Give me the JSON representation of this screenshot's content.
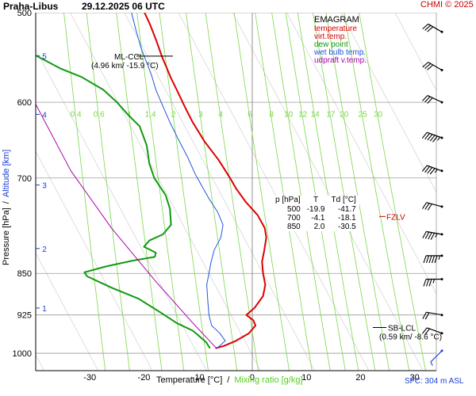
{
  "header": {
    "station": "Praha-Libus",
    "datetime": "29.12.2025 06 UTC",
    "copyright": "CHMI © 2025"
  },
  "legend": {
    "title": "EMAGRAM",
    "items": [
      {
        "label": "temperature",
        "color": "#dd0000"
      },
      {
        "label": "virt.temp.",
        "color": "#dd0000"
      },
      {
        "label": "dew point",
        "color": "#119911"
      },
      {
        "label": "wet bulb temp.",
        "color": "#2255dd"
      },
      {
        "label": "udpraft v.temp.",
        "color": "#aa00aa"
      }
    ]
  },
  "table": {
    "headers": [
      "p [hPa]",
      "T",
      "Td [°C]"
    ],
    "rows": [
      [
        "500",
        "-19.9",
        "-41.7"
      ],
      [
        "700",
        "-4.1",
        "-18.1"
      ],
      [
        "850",
        "2.0",
        "-30.5"
      ]
    ]
  },
  "footer": {
    "sfc": "SFC: 304 m ASL"
  },
  "chart_data": {
    "type": "line",
    "xlabel": "Temperature [°C]",
    "xlabel_sep": "/",
    "xlabel2": "Mixing ratio [g/kg]",
    "ylabel": "Pressure [hPa]",
    "ylabel_sep": "/",
    "ylabel2": "Altitude [km]",
    "xlim": [
      -40,
      34
    ],
    "ylim": [
      1036,
      500
    ],
    "y_scale": "log",
    "x_ticks": [
      -30,
      -20,
      -10,
      0,
      10,
      20,
      30
    ],
    "x_tick_labels": [
      "-30",
      "-20",
      "-10",
      "0",
      "10",
      "20",
      "30"
    ],
    "y_ticks": [
      500,
      600,
      700,
      850,
      925,
      1000
    ],
    "y_tick_labels": [
      "500",
      "600",
      "700",
      "850",
      "925",
      "1000"
    ],
    "altitude_ticks": [
      {
        "p": 615,
        "label": "4"
      },
      {
        "p": 710,
        "label": "3"
      },
      {
        "p": 808,
        "label": "2"
      },
      {
        "p": 912,
        "label": "1"
      },
      {
        "p": 546,
        "label": "5"
      }
    ],
    "mixing_ratio": {
      "values": [
        0.4,
        0.6,
        1,
        1.4,
        2,
        3,
        4,
        6,
        8,
        10,
        12,
        14,
        17,
        20,
        25,
        30
      ],
      "labels": [
        "0.4",
        "0.6",
        "1",
        "1.4",
        "2",
        "3",
        "4",
        "6",
        "8",
        "10",
        "12",
        "14",
        "17",
        "20",
        "25",
        "30"
      ],
      "label_pressure": 620
    },
    "series": [
      {
        "name": "temperature",
        "color": "#dd0000",
        "points": [
          [
            -6.8,
            990
          ],
          [
            -5.2,
            985
          ],
          [
            -3.0,
            975
          ],
          [
            -0.6,
            960
          ],
          [
            0.6,
            945
          ],
          [
            0.2,
            935
          ],
          [
            -1.1,
            925
          ],
          [
            0.4,
            912
          ],
          [
            2.0,
            890
          ],
          [
            2.4,
            870
          ],
          [
            2.0,
            850
          ],
          [
            1.8,
            830
          ],
          [
            2.2,
            812
          ],
          [
            2.6,
            790
          ],
          [
            2.3,
            775
          ],
          [
            1.0,
            755
          ],
          [
            -1.2,
            735
          ],
          [
            -3.0,
            715
          ],
          [
            -4.1,
            700
          ],
          [
            -6.2,
            675
          ],
          [
            -8.8,
            650
          ],
          [
            -11.0,
            625
          ],
          [
            -12.5,
            605
          ],
          [
            -13.8,
            587
          ],
          [
            -15.1,
            570
          ],
          [
            -15.9,
            558
          ],
          [
            -16.6,
            548
          ],
          [
            -17.8,
            528
          ],
          [
            -18.9,
            512
          ],
          [
            -19.9,
            500
          ]
        ]
      },
      {
        "name": "dew point",
        "color": "#119911",
        "points": [
          [
            -7.8,
            990
          ],
          [
            -8.5,
            978
          ],
          [
            -10.2,
            962
          ],
          [
            -11.0,
            955
          ],
          [
            -14.0,
            940
          ],
          [
            -17.0,
            920
          ],
          [
            -21.0,
            895
          ],
          [
            -26.0,
            875
          ],
          [
            -30.5,
            855
          ],
          [
            -31.0,
            848
          ],
          [
            -27.0,
            838
          ],
          [
            -22.0,
            828
          ],
          [
            -18.0,
            822
          ],
          [
            -17.8,
            815
          ],
          [
            -20.0,
            805
          ],
          [
            -19.0,
            795
          ],
          [
            -16.5,
            785
          ],
          [
            -15.0,
            770
          ],
          [
            -15.2,
            745
          ],
          [
            -16.0,
            725
          ],
          [
            -18.1,
            700
          ],
          [
            -19.0,
            680
          ],
          [
            -19.5,
            655
          ],
          [
            -20.8,
            630
          ],
          [
            -23.0,
            615
          ],
          [
            -25.0,
            600
          ],
          [
            -27.5,
            585
          ],
          [
            -31.5,
            570
          ],
          [
            -35.5,
            560
          ],
          [
            -39.5,
            547
          ],
          [
            -41.7,
            540
          ]
        ]
      },
      {
        "name": "wet bulb temp.",
        "color": "#2255dd",
        "points": [
          [
            -6.5,
            990
          ],
          [
            -5.0,
            975
          ],
          [
            -6.0,
            960
          ],
          [
            -7.5,
            945
          ],
          [
            -8.0,
            925
          ],
          [
            -8.2,
            900
          ],
          [
            -8.4,
            870
          ],
          [
            -8.0,
            850
          ],
          [
            -7.6,
            830
          ],
          [
            -7.0,
            810
          ],
          [
            -5.8,
            790
          ],
          [
            -5.4,
            770
          ],
          [
            -6.4,
            750
          ],
          [
            -8.0,
            730
          ],
          [
            -9.4,
            710
          ],
          [
            -10.5,
            695
          ],
          [
            -12.0,
            670
          ],
          [
            -13.8,
            645
          ],
          [
            -15.2,
            625
          ],
          [
            -16.5,
            605
          ],
          [
            -17.8,
            585
          ],
          [
            -18.6,
            568
          ],
          [
            -19.4,
            555
          ],
          [
            -20.5,
            538
          ],
          [
            -21.5,
            518
          ],
          [
            -22.3,
            500
          ]
        ]
      },
      {
        "name": "udpraft v.temp.",
        "color": "#aa00aa",
        "points": [
          [
            -6.6,
            990
          ],
          [
            -11.0,
            940
          ],
          [
            -18.0,
            862
          ],
          [
            -26.0,
            775
          ],
          [
            -33.5,
            690
          ],
          [
            -41.0,
            590
          ]
        ]
      }
    ],
    "ml_ccl": {
      "label": "ML-CCL",
      "value": "(4.96 km/ -15.9 °C)",
      "p": 556
    },
    "sb_lcl": {
      "label": "SB-LCL",
      "value": "(0.59 km/ -8.6 °C)",
      "p": 955
    },
    "fzlv": {
      "label": "FZLV",
      "p": 757
    },
    "winds": [
      {
        "p": 520,
        "dir": 300,
        "speed": 30
      },
      {
        "p": 562,
        "dir": 300,
        "speed": 30
      },
      {
        "p": 600,
        "dir": 295,
        "speed": 30
      },
      {
        "p": 645,
        "dir": 290,
        "speed": 55
      },
      {
        "p": 690,
        "dir": 290,
        "speed": 45
      },
      {
        "p": 742,
        "dir": 285,
        "speed": 30
      },
      {
        "p": 785,
        "dir": 280,
        "speed": 45
      },
      {
        "p": 820,
        "dir": 270,
        "speed": 55
      },
      {
        "p": 860,
        "dir": 270,
        "speed": 35
      },
      {
        "p": 925,
        "dir": 280,
        "speed": 20
      },
      {
        "p": 960,
        "dir": 290,
        "speed": 20
      },
      {
        "p": 995,
        "dir": 225,
        "speed": 5
      }
    ]
  }
}
